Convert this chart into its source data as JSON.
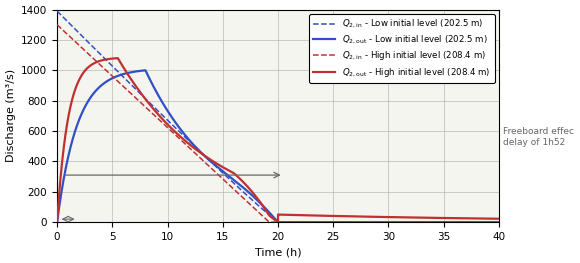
{
  "title": "",
  "xlabel": "Time (h)",
  "ylabel": "Discharge (m³/s)",
  "xlim": [
    0,
    40
  ],
  "ylim": [
    0,
    1400
  ],
  "xticks": [
    0,
    5,
    10,
    15,
    20,
    25,
    30,
    35,
    40
  ],
  "yticks": [
    0,
    200,
    400,
    600,
    800,
    1000,
    1200,
    1400
  ],
  "freeboard_y": 310,
  "freeboard_label": "Freeboard effec\ndelay of 1h52",
  "colors": {
    "blue": "#3050c8",
    "red": "#c03030"
  },
  "bg_color": "#f5f5f0"
}
